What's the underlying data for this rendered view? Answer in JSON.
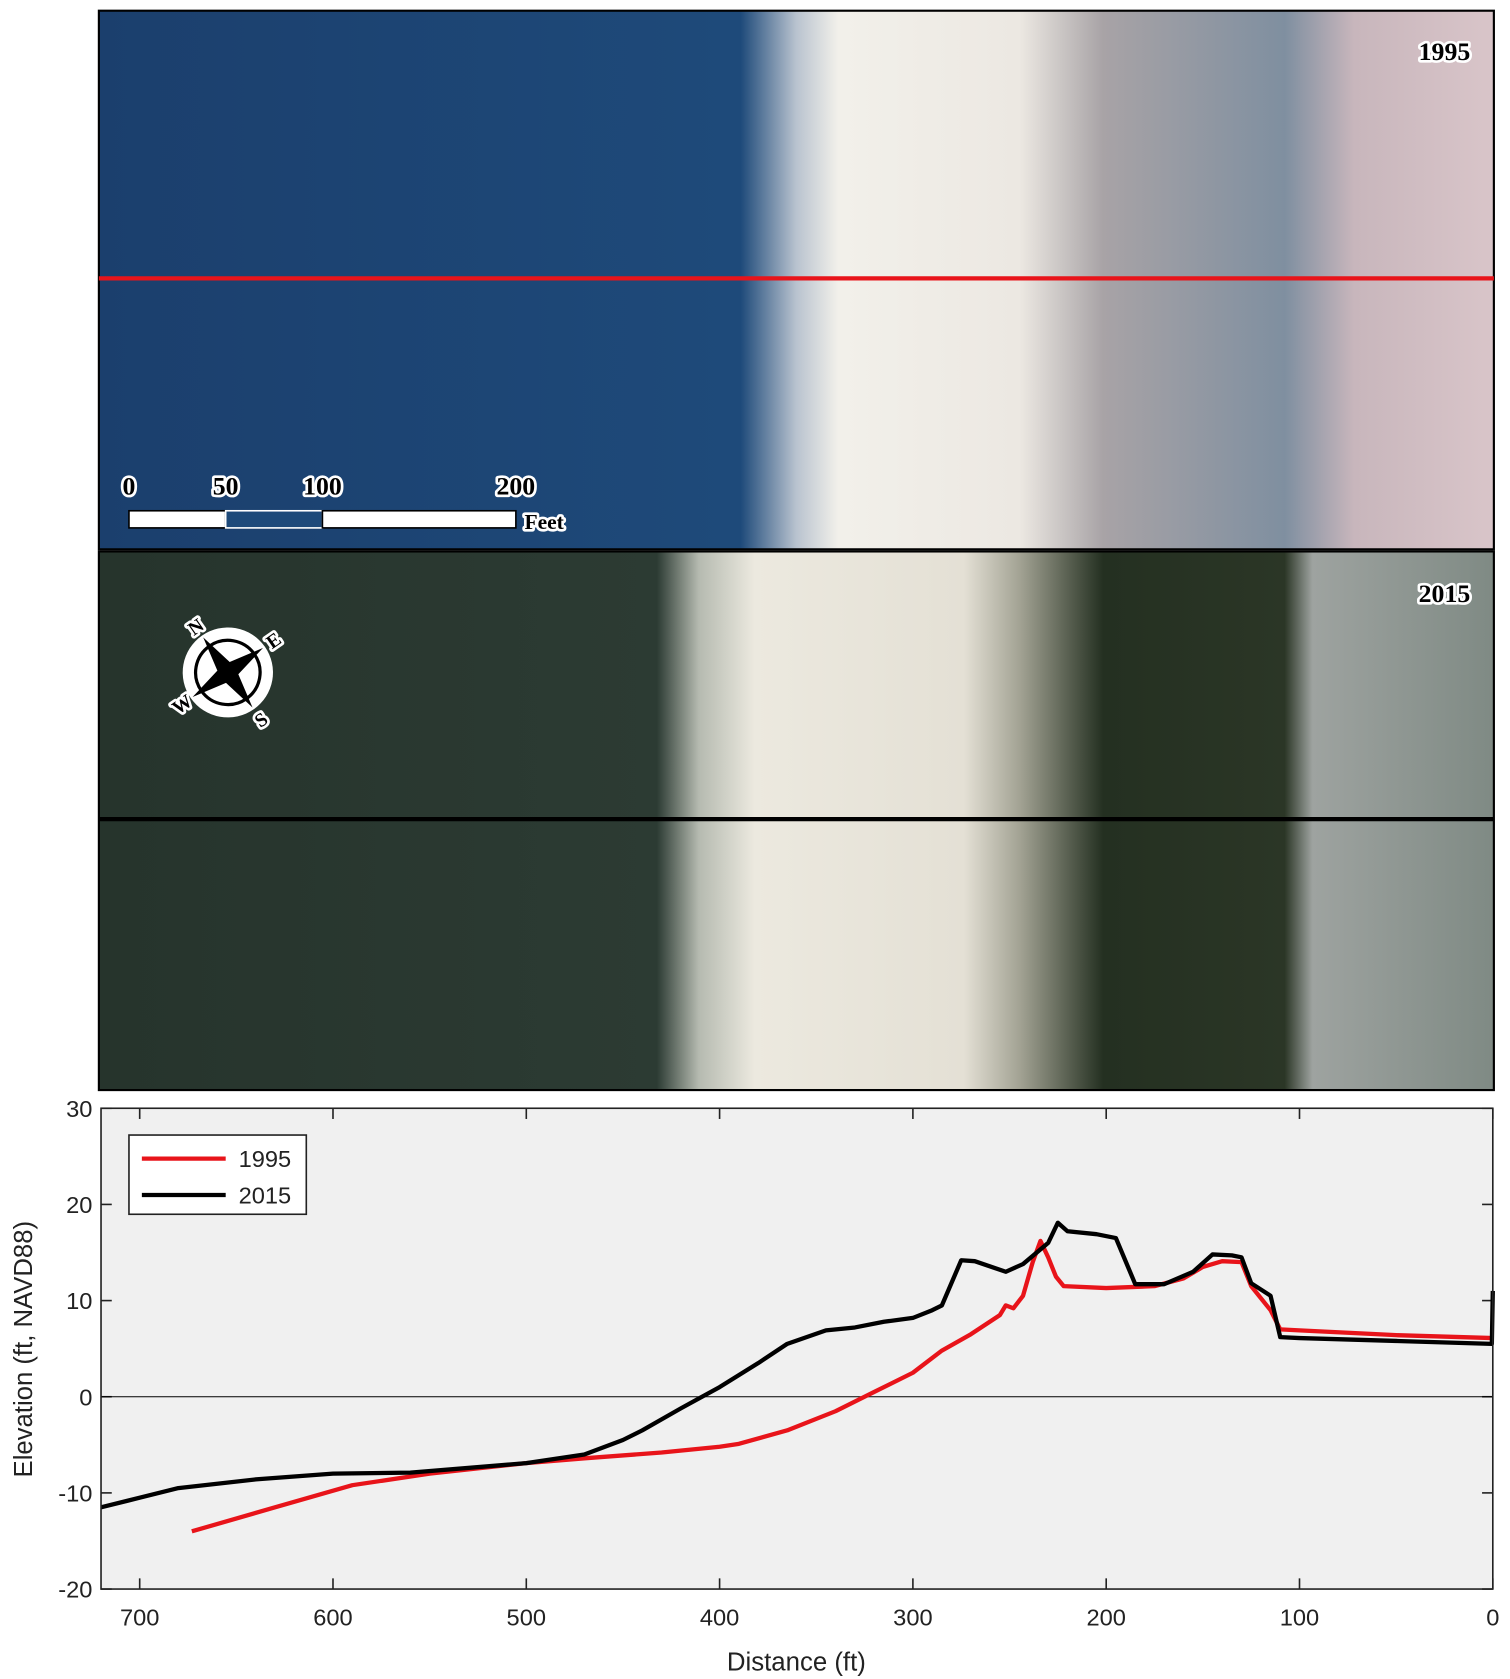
{
  "photos": {
    "top_label": "1995",
    "bottom_label": "2015",
    "scale_bar": {
      "labels": [
        "0",
        "50",
        "100",
        "200"
      ],
      "unit": "Feet"
    },
    "compass": [
      "W",
      "N",
      "S",
      "E"
    ]
  },
  "chart_data": {
    "type": "line",
    "xlabel": "Distance (ft)",
    "ylabel": "Elevation (ft, NAVD88)",
    "xlim": [
      720,
      0
    ],
    "ylim": [
      -20,
      30
    ],
    "xticks": [
      700,
      600,
      500,
      400,
      300,
      200,
      100,
      0
    ],
    "yticks": [
      -20,
      -10,
      0,
      10,
      20,
      30
    ],
    "hline": 0,
    "legend": "upper-left",
    "series": [
      {
        "name": "1995",
        "color": "#e8141a",
        "x": [
          673,
          630,
          590,
          550,
          500,
          470,
          430,
          400,
          390,
          365,
          340,
          320,
          300,
          285,
          270,
          255,
          252,
          248,
          243,
          238,
          234,
          230,
          226,
          222,
          200,
          175,
          160,
          150,
          140,
          130,
          125,
          115,
          110,
          100,
          50,
          0
        ],
        "values": [
          -14,
          -11.5,
          -9.2,
          -8,
          -6.9,
          -6.4,
          -5.8,
          -5.2,
          -4.9,
          -3.5,
          -1.5,
          0.5,
          2.5,
          4.8,
          6.5,
          8.5,
          9.5,
          9.2,
          10.5,
          14,
          16.2,
          14.5,
          12.5,
          11.5,
          11.3,
          11.5,
          12.3,
          13.5,
          14.1,
          14,
          11.5,
          9,
          7,
          6.9,
          6.4,
          6.1
        ]
      },
      {
        "name": "2015",
        "color": "#000000",
        "x": [
          720,
          700,
          680,
          640,
          600,
          560,
          500,
          470,
          450,
          440,
          420,
          400,
          380,
          365,
          345,
          330,
          315,
          300,
          290,
          285,
          275,
          268,
          252,
          243,
          230,
          225,
          220,
          205,
          195,
          185,
          170,
          155,
          145,
          135,
          130,
          125,
          115,
          110,
          100,
          50,
          0.5,
          0
        ],
        "values": [
          -11.5,
          -10.5,
          -9.5,
          -8.6,
          -8,
          -7.9,
          -6.9,
          -6,
          -4.5,
          -3.5,
          -1.2,
          1,
          3.5,
          5.5,
          6.9,
          7.2,
          7.8,
          8.2,
          9,
          9.5,
          14.2,
          14.1,
          13,
          13.8,
          16,
          18.1,
          17.2,
          16.9,
          16.5,
          11.7,
          11.7,
          13,
          14.8,
          14.7,
          14.5,
          11.8,
          10.5,
          6.2,
          6.1,
          5.8,
          5.5,
          11
        ]
      }
    ]
  }
}
